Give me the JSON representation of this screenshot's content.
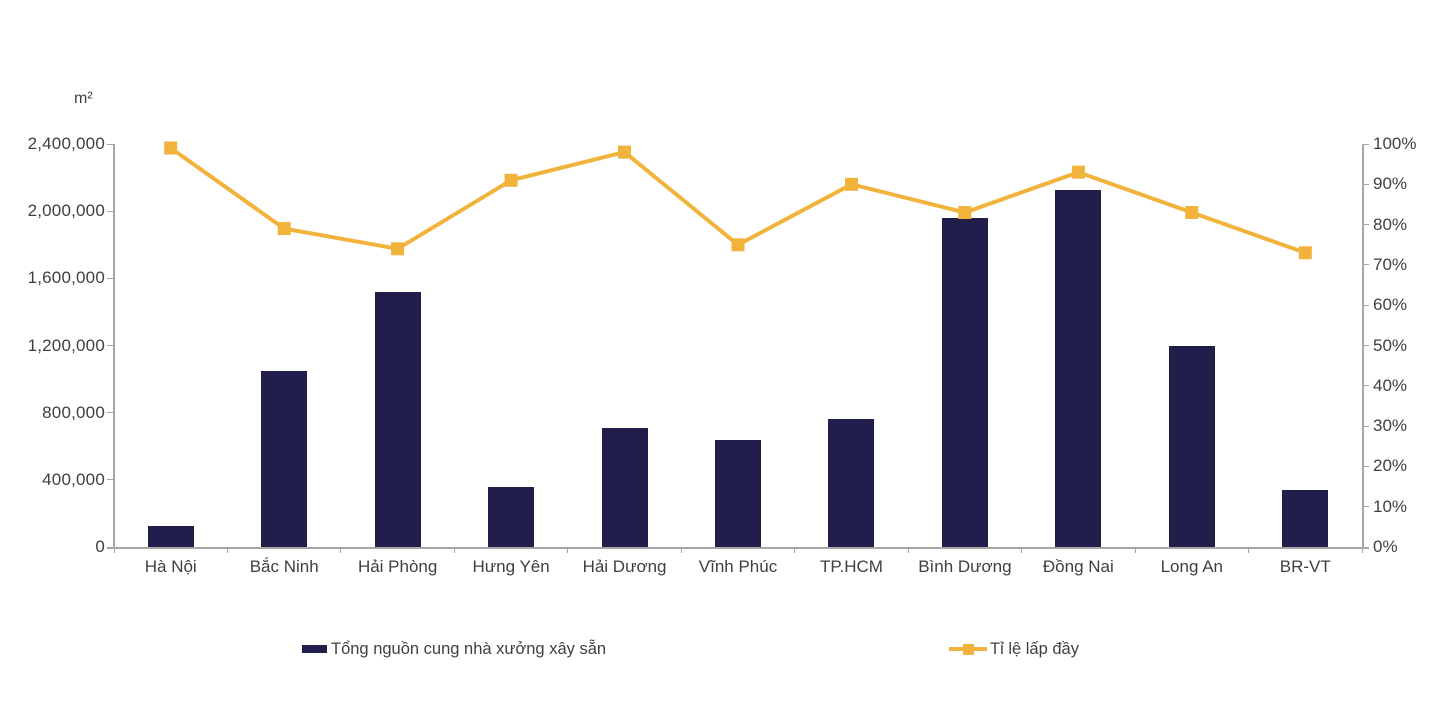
{
  "chart_data": {
    "type": "bar",
    "combo": "bar+line",
    "title": "",
    "categories": [
      "Hà Nội",
      "Bắc Ninh",
      "Hải Phòng",
      "Hưng Yên",
      "Hải Dương",
      "Vĩnh Phúc",
      "TP.HCM",
      "Bình Dương",
      "Đồng Nai",
      "Long An",
      "BR-VT"
    ],
    "series": [
      {
        "name": "Tổng nguồn cung nhà xưởng xây sẵn",
        "type": "bar",
        "axis": "left",
        "color": "#221E4B",
        "values": [
          125000,
          1050000,
          1520000,
          360000,
          710000,
          640000,
          760000,
          1960000,
          2125000,
          1200000,
          340000
        ]
      },
      {
        "name": "Tỉ lệ lấp đầy",
        "type": "line",
        "axis": "right",
        "color": "#F2B33C",
        "values": [
          99,
          79,
          74,
          91,
          98,
          75,
          90,
          83,
          93,
          83,
          73
        ]
      }
    ],
    "left_axis": {
      "unit_label": "m²",
      "min": 0,
      "max": 2400000,
      "step": 400000,
      "tick_labels": [
        "0",
        "400,000",
        "800,000",
        "1,200,000",
        "1,600,000",
        "2,000,000",
        "2,400,000"
      ]
    },
    "right_axis": {
      "min": 0,
      "max": 100,
      "step": 10,
      "tick_labels": [
        "0%",
        "10%",
        "20%",
        "30%",
        "40%",
        "50%",
        "60%",
        "70%",
        "80%",
        "90%",
        "100%"
      ]
    },
    "grid": false,
    "legend_position": "bottom",
    "axis_color": "#A6A6A6",
    "text_color": "#3F3F3F"
  }
}
